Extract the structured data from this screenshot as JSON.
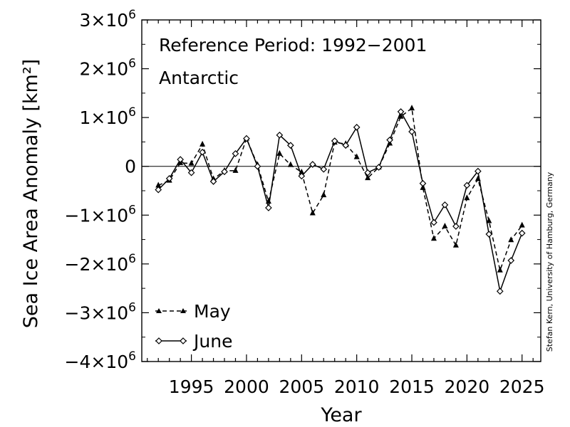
{
  "chart_data": {
    "type": "line",
    "annotations": [
      "Reference Period: 1992−2001",
      "Antarctic"
    ],
    "xlabel": "Year",
    "ylabel": "Sea Ice Area Anomaly [km²]",
    "credit": "Stefan Kern, University of Hamburg, Germany",
    "xlim": [
      1990.5,
      2026.7
    ],
    "ylim": [
      -4000000,
      3000000
    ],
    "x_ticks": [
      1995,
      2000,
      2005,
      2010,
      2015,
      2020,
      2025
    ],
    "x_tick_labels": [
      "1995",
      "2000",
      "2005",
      "2010",
      "2015",
      "2020",
      "2025"
    ],
    "y_ticks": [
      3000000,
      2000000,
      1000000,
      0,
      -1000000,
      -2000000,
      -3000000,
      -4000000
    ],
    "y_tick_labels": [
      {
        "sign": "",
        "mant": "3×10",
        "exp": "6"
      },
      {
        "sign": "",
        "mant": "2×10",
        "exp": "6"
      },
      {
        "sign": "",
        "mant": "1×10",
        "exp": "6"
      },
      {
        "sign": "",
        "mant": "0",
        "exp": ""
      },
      {
        "sign": "−",
        "mant": "1×10",
        "exp": "6"
      },
      {
        "sign": "−",
        "mant": "2×10",
        "exp": "6"
      },
      {
        "sign": "−",
        "mant": "3×10",
        "exp": "6"
      },
      {
        "sign": "−",
        "mant": "4×10",
        "exp": "6"
      }
    ],
    "zero_line": true,
    "grid": false,
    "legend_position": "bottom-left",
    "x": [
      1992,
      1993,
      1994,
      1995,
      1996,
      1997,
      1998,
      1999,
      2000,
      2001,
      2002,
      2003,
      2004,
      2005,
      2006,
      2007,
      2008,
      2009,
      2010,
      2011,
      2012,
      2013,
      2014,
      2015,
      2016,
      2017,
      2018,
      2019,
      2020,
      2021,
      2022,
      2023,
      2024,
      2025
    ],
    "series": [
      {
        "name": "May",
        "style": "dashed",
        "marker": "triangle",
        "values": [
          -390000,
          -290000,
          70000,
          60000,
          450000,
          -260000,
          -90000,
          -90000,
          570000,
          30000,
          -720000,
          260000,
          30000,
          -120000,
          -960000,
          -590000,
          490000,
          460000,
          190000,
          -240000,
          -20000,
          470000,
          1020000,
          1190000,
          -440000,
          -1480000,
          -1230000,
          -1620000,
          -650000,
          -260000,
          -1120000,
          -2130000,
          -1510000,
          -1210000
        ]
      },
      {
        "name": "June",
        "style": "solid",
        "marker": "diamond",
        "values": [
          -480000,
          -250000,
          140000,
          -130000,
          290000,
          -310000,
          -110000,
          260000,
          570000,
          0,
          -850000,
          640000,
          430000,
          -200000,
          40000,
          -60000,
          520000,
          430000,
          800000,
          -130000,
          -20000,
          540000,
          1120000,
          710000,
          -350000,
          -1150000,
          -790000,
          -1230000,
          -390000,
          -100000,
          -1390000,
          -2560000,
          -1930000,
          -1370000
        ]
      }
    ]
  }
}
